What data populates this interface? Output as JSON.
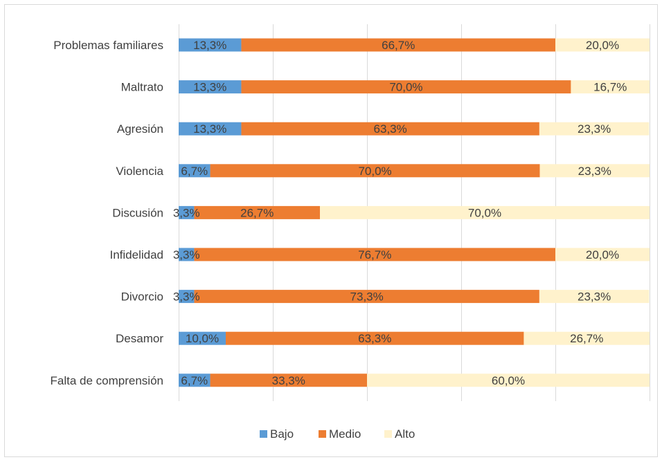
{
  "chart_data": {
    "type": "bar",
    "orientation": "horizontal",
    "stacked": "percent",
    "categories": [
      "Problemas familiares",
      "Maltrato",
      "Agresión",
      "Violencia",
      "Discusión",
      "Infidelidad",
      "Divorcio",
      "Desamor",
      "Falta de comprensión"
    ],
    "series": [
      {
        "name": "Bajo",
        "color": "#5b9bd5",
        "values": [
          13.3,
          13.3,
          13.3,
          6.7,
          3.3,
          3.3,
          3.3,
          10.0,
          6.7
        ],
        "labels": [
          "13,3%",
          "13,3%",
          "13,3%",
          "6,7%",
          "3,3%",
          "3,3%",
          "3,3%",
          "10,0%",
          "6,7%"
        ]
      },
      {
        "name": "Medio",
        "color": "#ed7d31",
        "values": [
          66.7,
          70.0,
          63.3,
          70.0,
          26.7,
          76.7,
          73.3,
          63.3,
          33.3
        ],
        "labels": [
          "66,7%",
          "70,0%",
          "63,3%",
          "70,0%",
          "26,7%",
          "76,7%",
          "73,3%",
          "63,3%",
          "33,3%"
        ]
      },
      {
        "name": "Alto",
        "color": "#fff2cc",
        "values": [
          20.0,
          16.7,
          23.3,
          23.3,
          70.0,
          20.0,
          23.3,
          26.7,
          60.0
        ],
        "labels": [
          "20,0%",
          "16,7%",
          "23,3%",
          "23,3%",
          "70,0%",
          "20,0%",
          "23,3%",
          "26,7%",
          "60,0%"
        ]
      }
    ],
    "xlim": [
      0,
      100
    ],
    "grid": true,
    "legend": "bottom"
  }
}
